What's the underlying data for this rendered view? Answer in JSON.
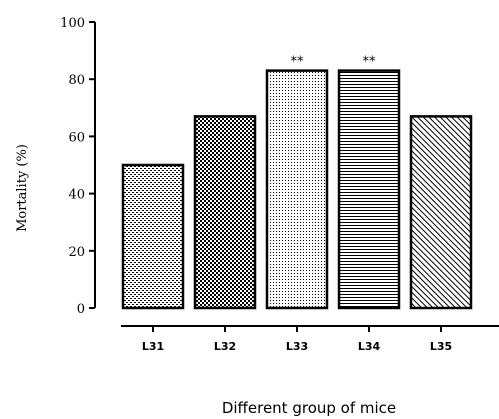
{
  "chart_data": {
    "type": "bar",
    "title": "",
    "ylabel": "Mortality (%)",
    "xlabel": "Different group of mice",
    "ylim": [
      0,
      100
    ],
    "yticks": [
      0,
      20,
      40,
      60,
      80,
      100
    ],
    "categories": [
      "L31",
      "L32",
      "L33",
      "L34",
      "L35"
    ],
    "values": [
      50,
      67,
      83,
      83,
      67
    ],
    "patterns": [
      "wave-dots",
      "checker",
      "fine-dots",
      "horizontal-lines",
      "diagonal-lines"
    ],
    "annotations": [
      "",
      "",
      "**",
      "**",
      ""
    ],
    "grid": false,
    "legend": "none",
    "bar_fill": "#ffffff",
    "bar_stroke": "#000000"
  }
}
